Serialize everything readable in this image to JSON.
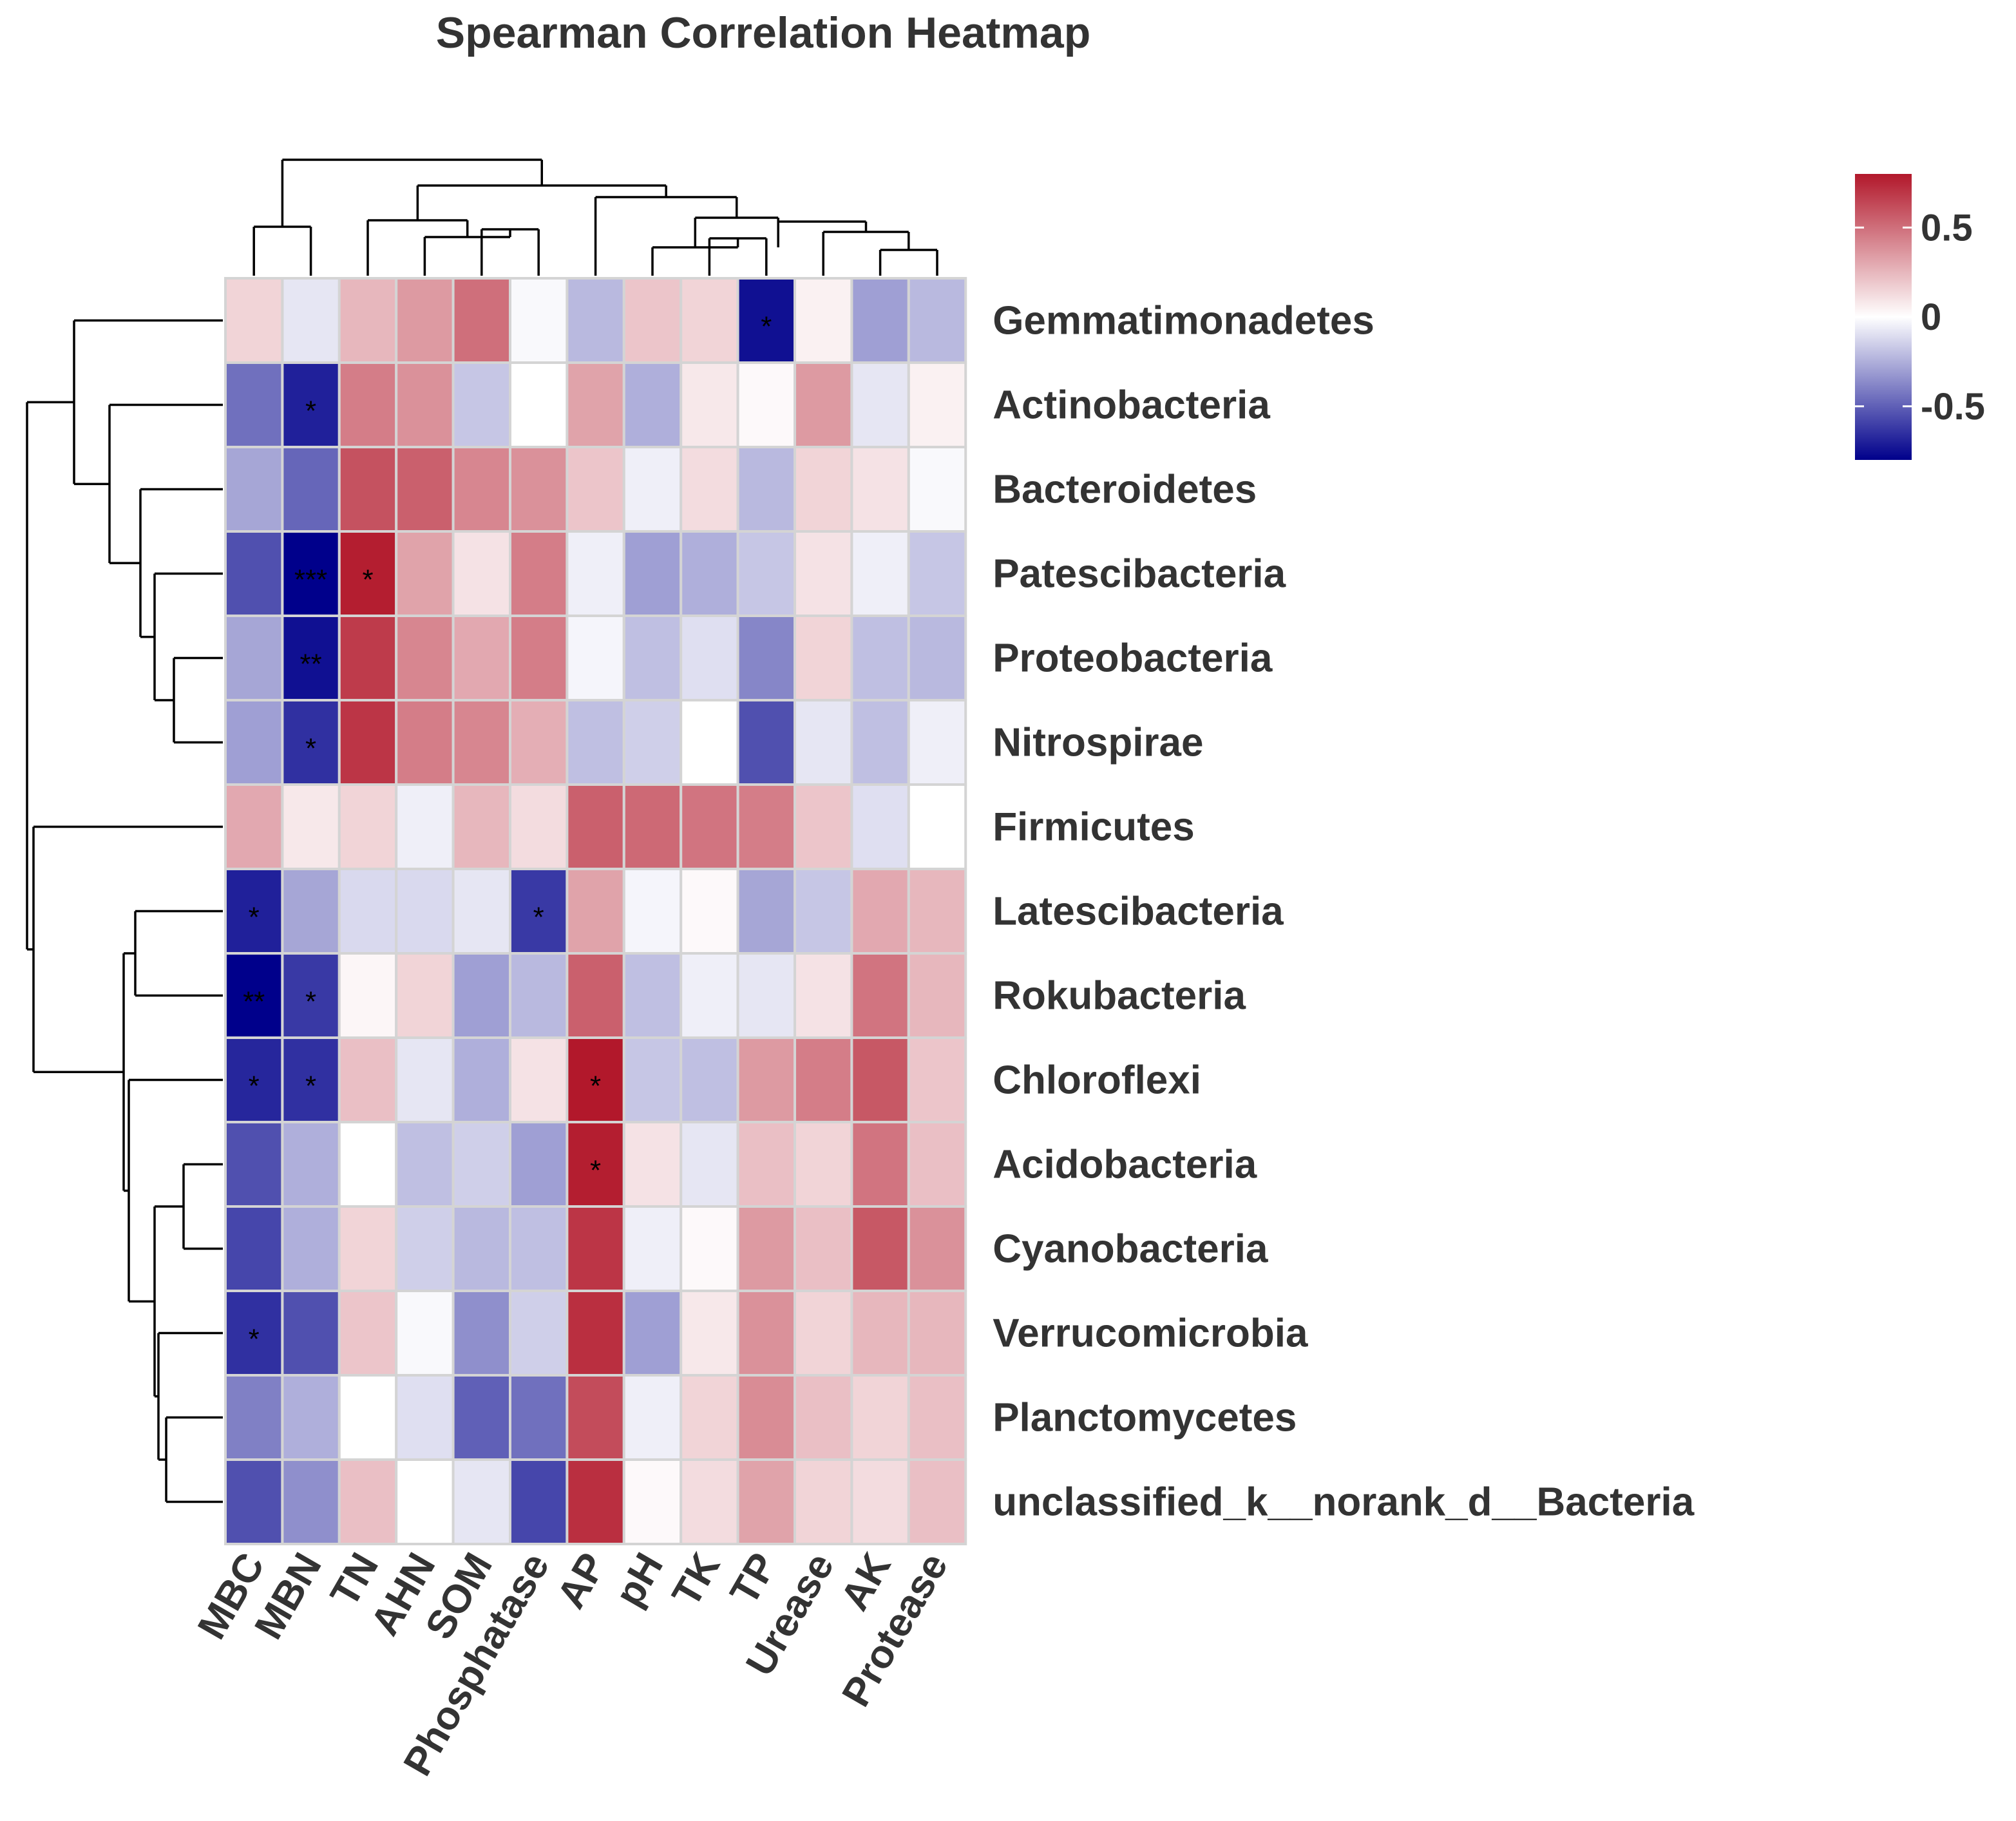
{
  "chart_data": {
    "type": "heatmap",
    "title": "Spearman Correlation Heatmap",
    "columns": [
      "MBC",
      "MBN",
      "TN",
      "AHN",
      "SOM",
      "Phosphatase",
      "AP",
      "pH",
      "TK",
      "TP",
      "Urease",
      "AK",
      "Protease"
    ],
    "rows": [
      "Gemmatimonadetes",
      "Actinobacteria",
      "Bacteroidetes",
      "Patescibacteria",
      "Proteobacteria",
      "Nitrospirae",
      "Firmicutes",
      "Latescibacteria",
      "Rokubacteria",
      "Chloroflexi",
      "Acidobacteria",
      "Cyanobacteria",
      "Verrucomicrobia",
      "Planctomycetes",
      "unclassified_k__norank_d__Bacteria"
    ],
    "values": [
      [
        0.15,
        -0.08,
        0.25,
        0.35,
        0.5,
        -0.02,
        -0.22,
        0.2,
        0.15,
        -0.75,
        0.05,
        -0.3,
        -0.22
      ],
      [
        -0.45,
        -0.7,
        0.45,
        0.38,
        -0.18,
        0.0,
        0.32,
        -0.25,
        0.08,
        0.02,
        0.35,
        -0.08,
        0.05
      ],
      [
        -0.28,
        -0.48,
        0.6,
        0.55,
        0.42,
        0.38,
        0.2,
        -0.05,
        0.12,
        -0.22,
        0.15,
        0.1,
        -0.02
      ],
      [
        -0.55,
        -0.82,
        0.78,
        0.32,
        0.1,
        0.45,
        -0.05,
        -0.3,
        -0.25,
        -0.18,
        0.1,
        -0.05,
        -0.18
      ],
      [
        -0.28,
        -0.75,
        0.68,
        0.42,
        0.3,
        0.45,
        -0.03,
        -0.2,
        -0.1,
        -0.38,
        0.15,
        -0.2,
        -0.22
      ],
      [
        -0.3,
        -0.65,
        0.7,
        0.45,
        0.42,
        0.28,
        -0.2,
        -0.15,
        0.0,
        -0.55,
        -0.08,
        -0.2,
        -0.05
      ],
      [
        0.3,
        0.08,
        0.15,
        -0.05,
        0.25,
        0.12,
        0.55,
        0.52,
        0.48,
        0.45,
        0.2,
        -0.1,
        0.0
      ],
      [
        -0.7,
        -0.28,
        -0.12,
        -0.12,
        -0.08,
        -0.62,
        0.32,
        -0.03,
        0.02,
        -0.28,
        -0.18,
        0.3,
        0.25
      ],
      [
        -0.82,
        -0.62,
        0.03,
        0.15,
        -0.3,
        -0.22,
        0.55,
        -0.2,
        -0.05,
        -0.08,
        0.1,
        0.48,
        0.25
      ],
      [
        -0.68,
        -0.65,
        0.22,
        -0.08,
        -0.25,
        0.1,
        0.8,
        -0.18,
        -0.2,
        0.35,
        0.45,
        0.58,
        0.2
      ],
      [
        -0.55,
        -0.25,
        0.0,
        -0.2,
        -0.15,
        -0.3,
        0.78,
        0.1,
        -0.08,
        0.22,
        0.15,
        0.48,
        0.22
      ],
      [
        -0.58,
        -0.25,
        0.15,
        -0.15,
        -0.22,
        -0.2,
        0.7,
        -0.05,
        0.02,
        0.35,
        0.22,
        0.58,
        0.38
      ],
      [
        -0.65,
        -0.55,
        0.2,
        -0.02,
        -0.35,
        -0.15,
        0.72,
        -0.3,
        0.08,
        0.38,
        0.15,
        0.25,
        0.25
      ],
      [
        -0.4,
        -0.25,
        0.0,
        -0.1,
        -0.5,
        -0.45,
        0.62,
        -0.05,
        0.15,
        0.4,
        0.22,
        0.15,
        0.22
      ],
      [
        -0.55,
        -0.35,
        0.22,
        0.0,
        -0.08,
        -0.58,
        0.72,
        0.02,
        0.12,
        0.32,
        0.15,
        0.12,
        0.22
      ]
    ],
    "significance": [
      [
        "",
        "",
        "",
        "",
        "",
        "",
        "",
        "",
        "",
        "*",
        "",
        "",
        ""
      ],
      [
        "",
        "*",
        "",
        "",
        "",
        "",
        "",
        "",
        "",
        "",
        "",
        "",
        ""
      ],
      [
        "",
        "",
        "",
        "",
        "",
        "",
        "",
        "",
        "",
        "",
        "",
        "",
        ""
      ],
      [
        "",
        "***",
        "*",
        "",
        "",
        "",
        "",
        "",
        "",
        "",
        "",
        "",
        ""
      ],
      [
        "",
        "**",
        "",
        "",
        "",
        "",
        "",
        "",
        "",
        "",
        "",
        "",
        ""
      ],
      [
        "",
        "*",
        "",
        "",
        "",
        "",
        "",
        "",
        "",
        "",
        "",
        "",
        ""
      ],
      [
        "",
        "",
        "",
        "",
        "",
        "",
        "",
        "",
        "",
        "",
        "",
        "",
        ""
      ],
      [
        "*",
        "",
        "",
        "",
        "",
        "*",
        "",
        "",
        "",
        "",
        "",
        "",
        ""
      ],
      [
        "**",
        "*",
        "",
        "",
        "",
        "",
        "",
        "",
        "",
        "",
        "",
        "",
        ""
      ],
      [
        "*",
        "*",
        "",
        "",
        "",
        "",
        "*",
        "",
        "",
        "",
        "",
        "",
        ""
      ],
      [
        "",
        "",
        "",
        "",
        "",
        "",
        "*",
        "",
        "",
        "",
        "",
        "",
        ""
      ],
      [
        "",
        "",
        "",
        "",
        "",
        "",
        "",
        "",
        "",
        "",
        "",
        "",
        ""
      ],
      [
        "*",
        "",
        "",
        "",
        "",
        "",
        "",
        "",
        "",
        "",
        "",
        "",
        ""
      ],
      [
        "",
        "",
        "",
        "",
        "",
        "",
        "",
        "",
        "",
        "",
        "",
        "",
        ""
      ],
      [
        "",
        "",
        "",
        "",
        "",
        "",
        "",
        "",
        "",
        "",
        "",
        "",
        ""
      ]
    ],
    "color_scale": {
      "min": -0.8,
      "max": 0.8,
      "low_color": "#00008b",
      "mid_color": "#ffffff",
      "high_color": "#b2182b",
      "ticks": [
        0.5,
        0,
        -0.5
      ],
      "tick_labels": [
        "0.5",
        "0",
        "-0.5"
      ]
    },
    "col_dendrogram_order": [
      "MBC",
      "MBN",
      "TN",
      "AHN",
      "SOM",
      "Phosphatase",
      "AP",
      "pH",
      "TK",
      "TP",
      "Urease",
      "AK",
      "Protease"
    ],
    "row_dendrogram_order": [
      "Gemmatimonadetes",
      "Actinobacteria",
      "Bacteroidetes",
      "Patescibacteria",
      "Proteobacteria",
      "Nitrospirae",
      "Firmicutes",
      "Latescibacteria",
      "Rokubacteria",
      "Chloroflexi",
      "Acidobacteria",
      "Cyanobacteria",
      "Verrucomicrobia",
      "Planctomycetes",
      "unclassified_k__norank_d__Bacteria"
    ]
  }
}
